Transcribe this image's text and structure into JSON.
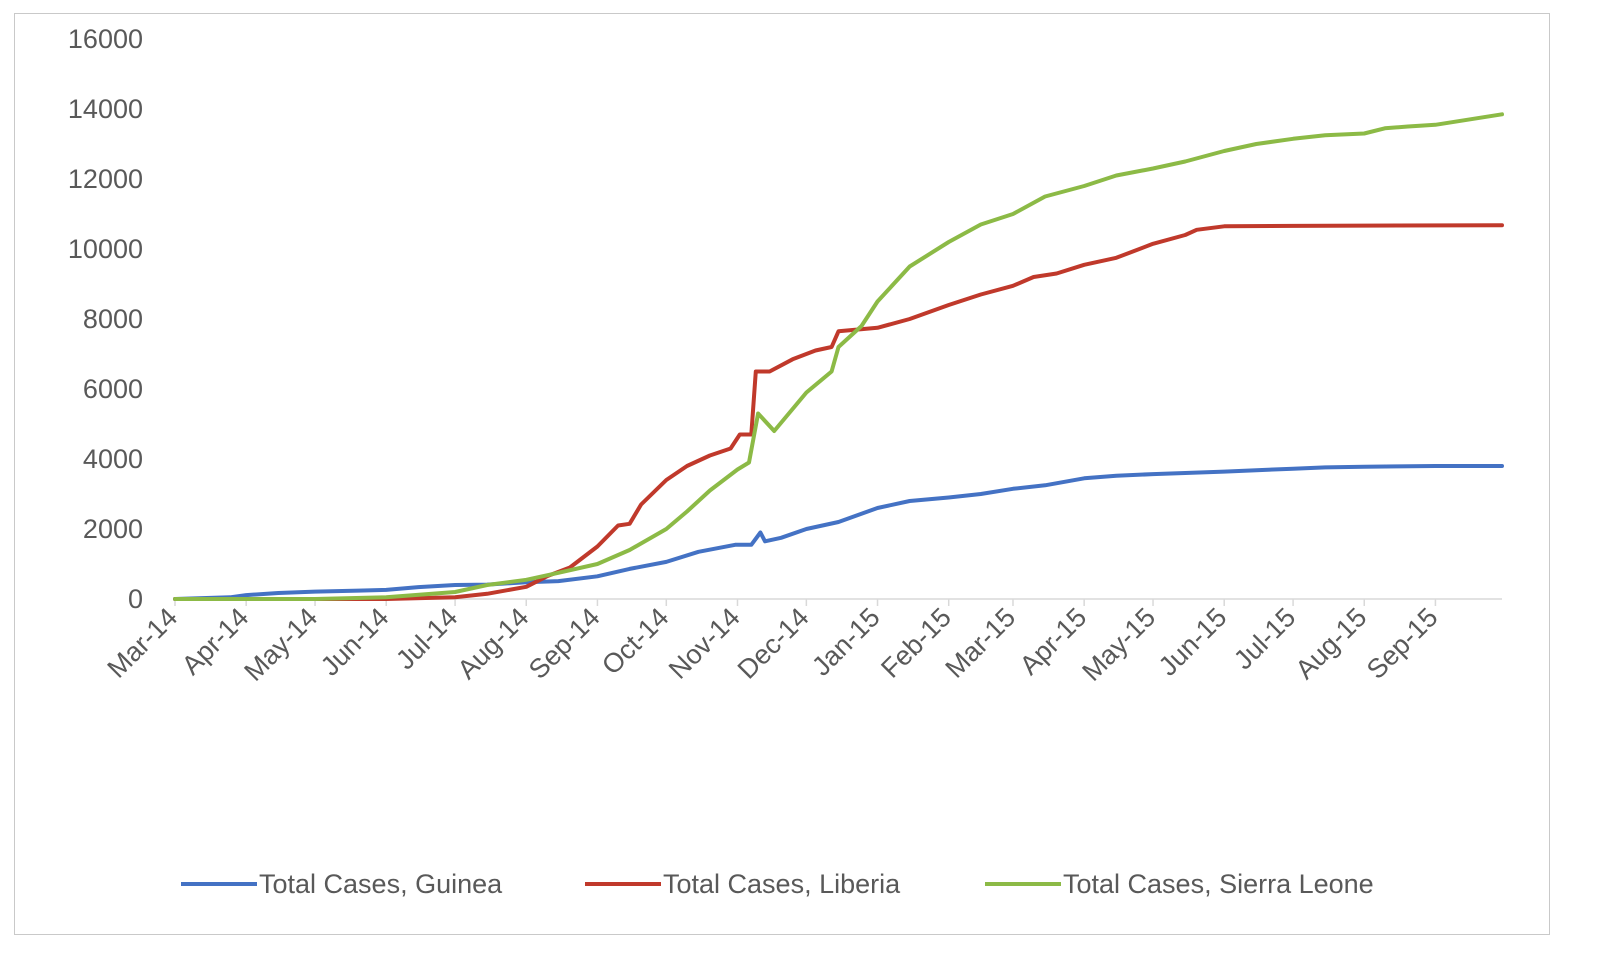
{
  "chart_data": {
    "type": "line",
    "title": "",
    "xlabel": "",
    "ylabel": "",
    "x_ticks": [
      "Mar-14",
      "Apr-14",
      "May-14",
      "Jun-14",
      "Jul-14",
      "Aug-14",
      "Sep-14",
      "Oct-14",
      "Nov-14",
      "Dec-14",
      "Jan-15",
      "Feb-15",
      "Mar-15",
      "Apr-15",
      "May-15",
      "Jun-15",
      "Jul-15",
      "Aug-15",
      "Sep-15"
    ],
    "x_range": [
      "2014-03-01",
      "2015-09-30"
    ],
    "ylim": [
      0,
      16000
    ],
    "y_ticks": [
      "0",
      "2000",
      "4000",
      "6000",
      "8000",
      "10000",
      "12000",
      "14000",
      "16000"
    ],
    "grid": false,
    "legend_position": "bottom",
    "series": [
      {
        "name": "Total Cases, Guinea",
        "color": "#4472c4",
        "points": [
          [
            "2014-03-01",
            0
          ],
          [
            "2014-03-25",
            50
          ],
          [
            "2014-04-01",
            110
          ],
          [
            "2014-04-15",
            170
          ],
          [
            "2014-05-01",
            210
          ],
          [
            "2014-05-20",
            240
          ],
          [
            "2014-06-01",
            260
          ],
          [
            "2014-06-15",
            340
          ],
          [
            "2014-07-01",
            400
          ],
          [
            "2014-07-15",
            410
          ],
          [
            "2014-08-01",
            480
          ],
          [
            "2014-08-15",
            510
          ],
          [
            "2014-09-01",
            650
          ],
          [
            "2014-09-15",
            860
          ],
          [
            "2014-10-01",
            1060
          ],
          [
            "2014-10-15",
            1350
          ],
          [
            "2014-10-31",
            1550
          ],
          [
            "2014-11-07",
            1550
          ],
          [
            "2014-11-11",
            1900
          ],
          [
            "2014-11-13",
            1650
          ],
          [
            "2014-11-20",
            1750
          ],
          [
            "2014-12-01",
            2000
          ],
          [
            "2014-12-15",
            2200
          ],
          [
            "2015-01-01",
            2600
          ],
          [
            "2015-01-15",
            2800
          ],
          [
            "2015-02-01",
            2900
          ],
          [
            "2015-02-15",
            3000
          ],
          [
            "2015-03-01",
            3150
          ],
          [
            "2015-03-15",
            3250
          ],
          [
            "2015-04-01",
            3450
          ],
          [
            "2015-04-15",
            3520
          ],
          [
            "2015-05-01",
            3570
          ],
          [
            "2015-05-15",
            3600
          ],
          [
            "2015-06-01",
            3640
          ],
          [
            "2015-06-15",
            3680
          ],
          [
            "2015-07-01",
            3720
          ],
          [
            "2015-07-15",
            3760
          ],
          [
            "2015-08-01",
            3780
          ],
          [
            "2015-08-15",
            3790
          ],
          [
            "2015-09-01",
            3800
          ],
          [
            "2015-09-30",
            3800
          ]
        ]
      },
      {
        "name": "Total Cases, Liberia",
        "color": "#c0392b",
        "points": [
          [
            "2014-03-01",
            0
          ],
          [
            "2014-06-01",
            0
          ],
          [
            "2014-07-01",
            50
          ],
          [
            "2014-07-15",
            150
          ],
          [
            "2014-08-01",
            350
          ],
          [
            "2014-08-10",
            650
          ],
          [
            "2014-08-20",
            900
          ],
          [
            "2014-09-01",
            1500
          ],
          [
            "2014-09-10",
            2100
          ],
          [
            "2014-09-15",
            2150
          ],
          [
            "2014-09-20",
            2700
          ],
          [
            "2014-10-01",
            3400
          ],
          [
            "2014-10-10",
            3800
          ],
          [
            "2014-10-20",
            4100
          ],
          [
            "2014-10-29",
            4300
          ],
          [
            "2014-11-02",
            4700
          ],
          [
            "2014-11-07",
            4700
          ],
          [
            "2014-11-09",
            6500
          ],
          [
            "2014-11-15",
            6500
          ],
          [
            "2014-11-25",
            6850
          ],
          [
            "2014-12-05",
            7100
          ],
          [
            "2014-12-12",
            7200
          ],
          [
            "2014-12-15",
            7650
          ],
          [
            "2015-01-01",
            7750
          ],
          [
            "2015-01-15",
            8000
          ],
          [
            "2015-02-01",
            8400
          ],
          [
            "2015-02-15",
            8700
          ],
          [
            "2015-03-01",
            8950
          ],
          [
            "2015-03-10",
            9200
          ],
          [
            "2015-03-20",
            9300
          ],
          [
            "2015-04-01",
            9550
          ],
          [
            "2015-04-15",
            9750
          ],
          [
            "2015-05-01",
            10150
          ],
          [
            "2015-05-15",
            10400
          ],
          [
            "2015-05-20",
            10550
          ],
          [
            "2015-06-01",
            10650
          ],
          [
            "2015-07-01",
            10660
          ],
          [
            "2015-08-01",
            10670
          ],
          [
            "2015-09-30",
            10680
          ]
        ]
      },
      {
        "name": "Total Cases, Sierra Leone",
        "color": "#8cba46",
        "points": [
          [
            "2014-03-01",
            0
          ],
          [
            "2014-05-01",
            0
          ],
          [
            "2014-06-01",
            50
          ],
          [
            "2014-07-01",
            200
          ],
          [
            "2014-07-15",
            400
          ],
          [
            "2014-08-01",
            550
          ],
          [
            "2014-08-15",
            750
          ],
          [
            "2014-09-01",
            1000
          ],
          [
            "2014-09-15",
            1400
          ],
          [
            "2014-10-01",
            2000
          ],
          [
            "2014-10-10",
            2500
          ],
          [
            "2014-10-20",
            3100
          ],
          [
            "2014-11-01",
            3700
          ],
          [
            "2014-11-06",
            3900
          ],
          [
            "2014-11-10",
            5300
          ],
          [
            "2014-11-17",
            4800
          ],
          [
            "2014-12-01",
            5900
          ],
          [
            "2014-12-12",
            6500
          ],
          [
            "2014-12-15",
            7200
          ],
          [
            "2014-12-25",
            7800
          ],
          [
            "2015-01-01",
            8500
          ],
          [
            "2015-01-15",
            9500
          ],
          [
            "2015-02-01",
            10200
          ],
          [
            "2015-02-15",
            10700
          ],
          [
            "2015-03-01",
            11000
          ],
          [
            "2015-03-15",
            11500
          ],
          [
            "2015-04-01",
            11800
          ],
          [
            "2015-04-15",
            12100
          ],
          [
            "2015-05-01",
            12300
          ],
          [
            "2015-05-15",
            12500
          ],
          [
            "2015-06-01",
            12800
          ],
          [
            "2015-06-15",
            13000
          ],
          [
            "2015-07-01",
            13150
          ],
          [
            "2015-07-15",
            13250
          ],
          [
            "2015-08-01",
            13300
          ],
          [
            "2015-08-10",
            13450
          ],
          [
            "2015-08-20",
            13500
          ],
          [
            "2015-09-01",
            13550
          ],
          [
            "2015-09-30",
            13850
          ]
        ]
      }
    ]
  }
}
